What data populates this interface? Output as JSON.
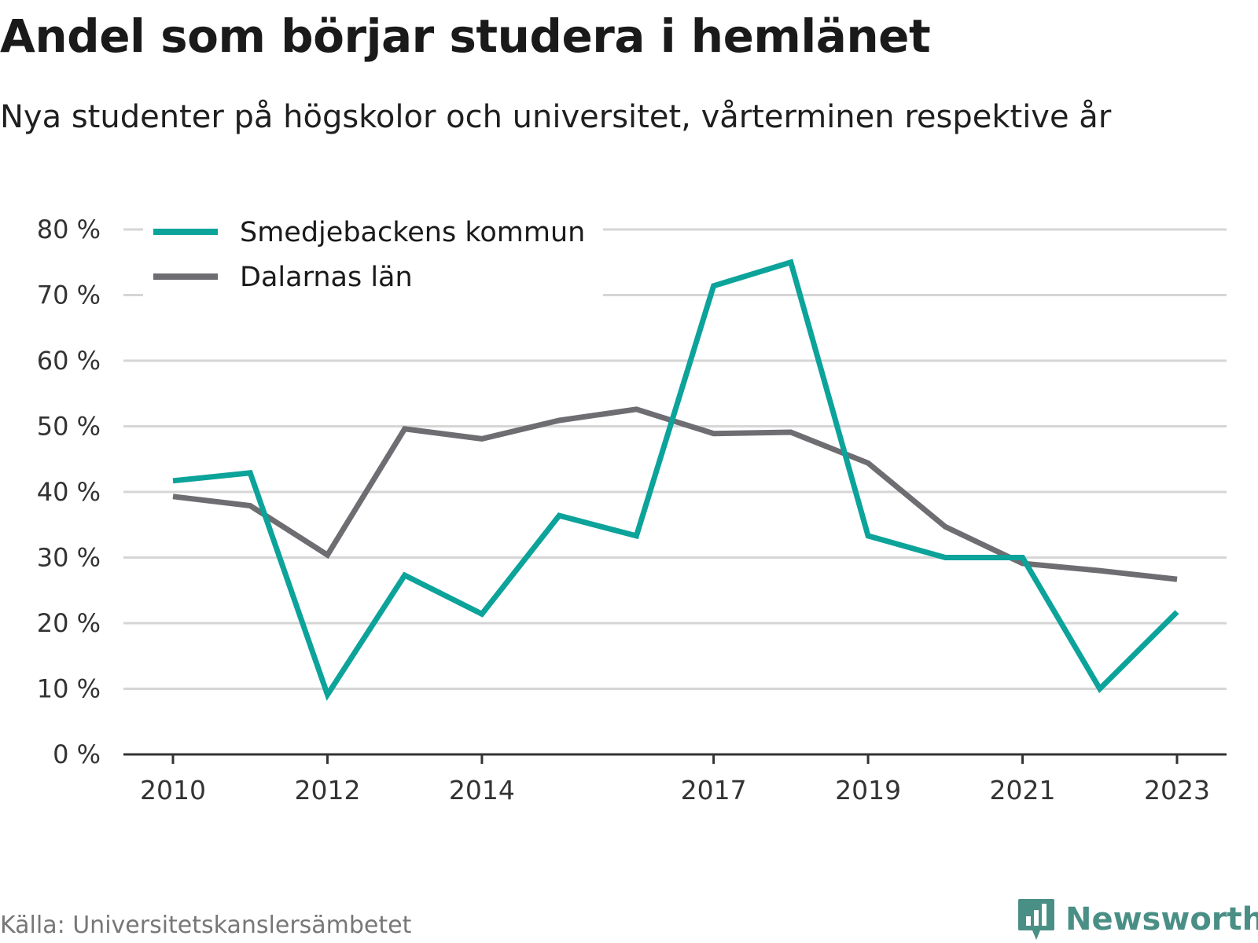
{
  "title": "Andel som börjar studera i hemlänet",
  "subtitle": "Nya studenter på högskolor och universitet, vårterminen respektive år",
  "source": "Källa: Universitetskanslersämbetet",
  "brand": {
    "name": "Newsworthy",
    "icon": "newsworthy-logo-icon",
    "color": "#4a8f86"
  },
  "colors": {
    "series1": "#0ca39a",
    "series2": "#6d6d72",
    "grid": "#d6d6d6",
    "axis": "#333333"
  },
  "chart_data": {
    "type": "line",
    "x": [
      2010,
      2011,
      2012,
      2013,
      2014,
      2015,
      2016,
      2017,
      2018,
      2019,
      2020,
      2021,
      2022,
      2023
    ],
    "x_tick_labels": [
      "2010",
      "2012",
      "2014",
      "2017",
      "2019",
      "2021",
      "2023"
    ],
    "y_tick_labels": [
      "0 %",
      "10 %",
      "20 %",
      "30 %",
      "40 %",
      "50 %",
      "60 %",
      "70 %",
      "80 %"
    ],
    "ylim": [
      0,
      80
    ],
    "grid": true,
    "legend": "top-left",
    "series": [
      {
        "name": "Smedjebackens kommun",
        "color": "#0ca39a",
        "values": [
          41.7,
          42.9,
          9.1,
          27.3,
          21.4,
          36.4,
          33.3,
          71.4,
          75.0,
          33.3,
          30.0,
          30.0,
          10.0,
          21.7
        ]
      },
      {
        "name": "Dalarnas län",
        "color": "#6d6d72",
        "values": [
          39.3,
          37.9,
          30.4,
          49.6,
          48.1,
          50.9,
          52.6,
          48.9,
          49.1,
          44.4,
          34.7,
          29.1,
          28.0,
          26.7
        ]
      }
    ]
  }
}
